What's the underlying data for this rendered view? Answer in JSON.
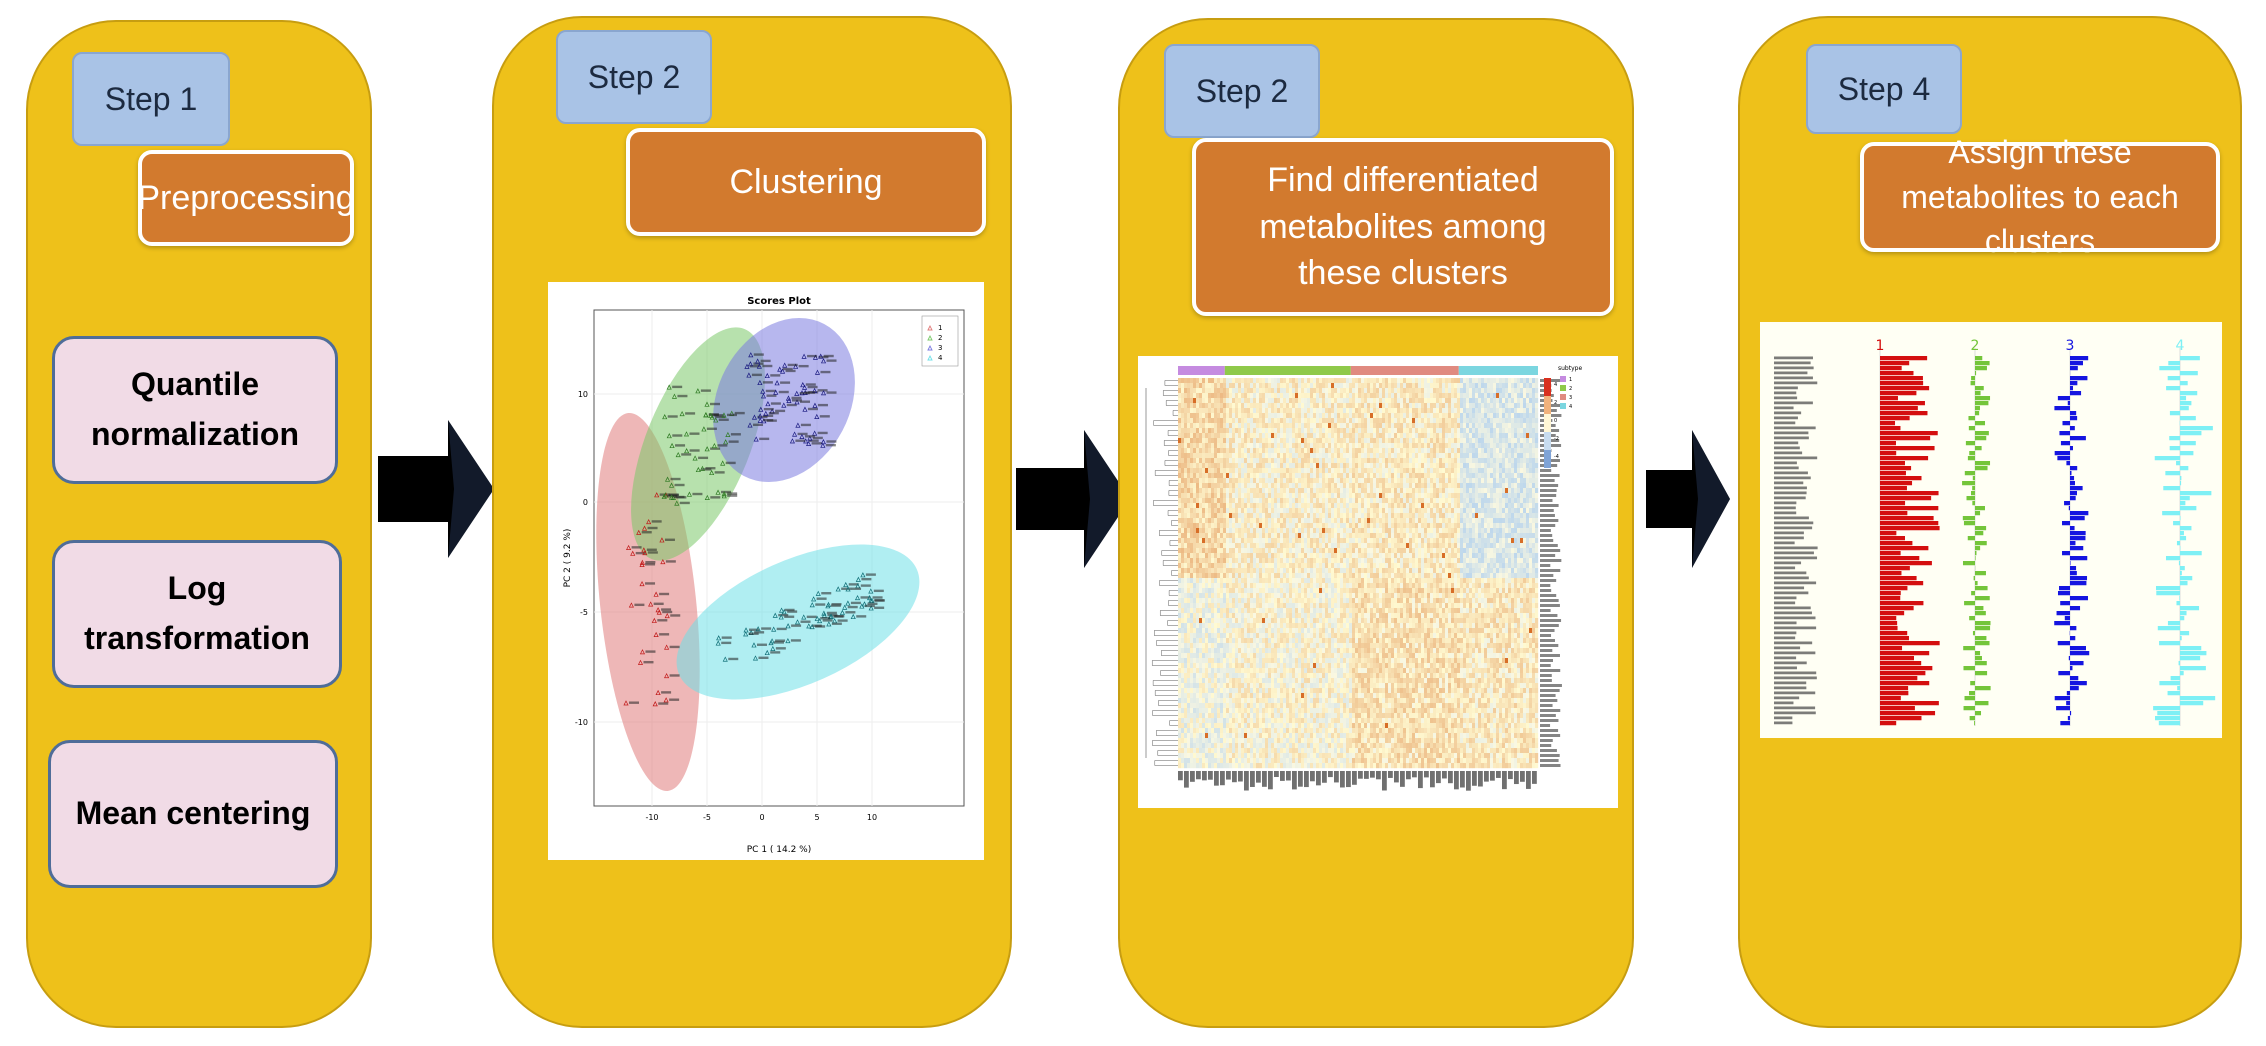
{
  "panels": [
    {
      "step": "Step 1",
      "title": "Preprocessing",
      "methods": [
        "Quantile normalization",
        "Log transformation",
        "Mean centering"
      ]
    },
    {
      "step": "Step 2",
      "title": "Clustering"
    },
    {
      "step": "Step 2",
      "title": "Find differentiated metabolites among these clusters"
    },
    {
      "step": "Step 4",
      "title": "Assign these metabolites to each clusters"
    }
  ],
  "scores_plot": {
    "title": "Scores Plot",
    "xlabel": "PC 1 ( 14.2 %)",
    "ylabel": "PC 2 ( 9.2 %)",
    "x_ticks": [
      "-10",
      "-5",
      "0",
      "5",
      "10"
    ],
    "y_ticks": [
      "10",
      "0",
      "-5",
      "-10"
    ],
    "legend": [
      "1",
      "2",
      "3",
      "4"
    ],
    "colors": [
      "#e07b7b",
      "#7bc96a",
      "#7b7be0",
      "#6fe0e8"
    ]
  },
  "heatmap": {
    "legend_title": "subtype",
    "legend_items": [
      "1",
      "2",
      "3",
      "4"
    ],
    "cluster_colors": [
      "#c58be0",
      "#8fc94a",
      "#e08a80",
      "#7bd6e0"
    ],
    "scale_labels": [
      "4",
      "2",
      "0",
      "-2",
      "-4"
    ]
  },
  "bar_panel": {
    "cluster_labels": [
      "1",
      "2",
      "3",
      "4"
    ],
    "colors": [
      "#d40f0f",
      "#74c53a",
      "#1515e0",
      "#7ef0f5"
    ]
  }
}
